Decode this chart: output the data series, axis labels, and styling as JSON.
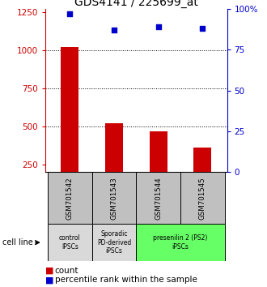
{
  "title": "GDS4141 / 225699_at",
  "samples": [
    "GSM701542",
    "GSM701543",
    "GSM701544",
    "GSM701545"
  ],
  "bar_values": [
    1020,
    520,
    470,
    360
  ],
  "percentile_values": [
    97,
    87,
    89,
    88
  ],
  "bar_color": "#cc0000",
  "dot_color": "#0000cc",
  "ylim_left": [
    200,
    1275
  ],
  "ylim_right": [
    0,
    100
  ],
  "yticks_left": [
    250,
    500,
    750,
    1000,
    1250
  ],
  "yticks_right": [
    0,
    25,
    50,
    75,
    100
  ],
  "groups": [
    {
      "label": "control\nIPSCs",
      "start": 0,
      "end": 1,
      "color": "#d9d9d9"
    },
    {
      "label": "Sporadic\nPD-derived\niPSCs",
      "start": 1,
      "end": 2,
      "color": "#d9d9d9"
    },
    {
      "label": "presenilin 2 (PS2)\niPSCs",
      "start": 2,
      "end": 4,
      "color": "#66ff66"
    }
  ],
  "cell_line_label": "cell line",
  "legend_count_label": "count",
  "legend_percentile_label": "percentile rank within the sample",
  "bar_color_legend": "#cc0000",
  "dot_color_legend": "#0000cc",
  "title_fontsize": 10,
  "tick_fontsize": 7.5,
  "sample_box_color": "#c0c0c0",
  "dotted_lines": [
    500,
    750,
    1000
  ],
  "bar_width": 0.4
}
